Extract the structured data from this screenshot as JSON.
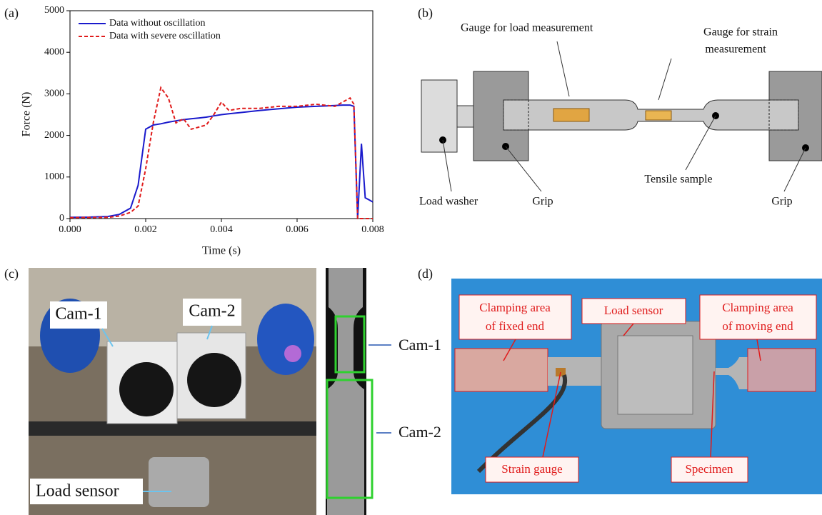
{
  "chart_data": {
    "type": "line",
    "panel_label": "(a)",
    "xlabel": "Time (s)",
    "ylabel": "Force (N)",
    "x": [
      0,
      0.0005,
      0.001,
      0.0013,
      0.0016,
      0.0018,
      0.002,
      0.0022,
      0.0024,
      0.0026,
      0.0028,
      0.003,
      0.0032,
      0.0034,
      0.0036,
      0.0038,
      0.004,
      0.0042,
      0.0045,
      0.005,
      0.0055,
      0.006,
      0.0065,
      0.007,
      0.0072,
      0.0074,
      0.0075,
      0.0076,
      0.0077,
      0.0078,
      0.0079,
      0.008
    ],
    "series": [
      {
        "name": "Data without oscillation",
        "color": "#1a1acc",
        "dash": false,
        "values": [
          30,
          35,
          50,
          100,
          250,
          800,
          2150,
          2250,
          2280,
          2320,
          2350,
          2380,
          2400,
          2420,
          2440,
          2470,
          2500,
          2520,
          2550,
          2600,
          2640,
          2680,
          2700,
          2720,
          2730,
          2730,
          2700,
          0,
          1800,
          500,
          450,
          400
        ]
      },
      {
        "name": "Data with severe oscillation",
        "color": "#e01b1b",
        "dash": true,
        "values": [
          20,
          25,
          30,
          60,
          150,
          300,
          1200,
          2300,
          3150,
          2900,
          2300,
          2400,
          2150,
          2200,
          2250,
          2500,
          2800,
          2600,
          2650,
          2650,
          2700,
          2700,
          2750,
          2700,
          2800,
          2900,
          2750,
          0,
          0,
          0,
          0,
          0
        ]
      }
    ],
    "xlim": [
      0,
      0.008
    ],
    "ylim": [
      0,
      5000
    ],
    "xticks": [
      {
        "value": 0,
        "label": "0.000"
      },
      0.002,
      0.004,
      0.006,
      0.008
    ],
    "yticks": [
      0,
      1000,
      2000,
      3000,
      4000,
      5000
    ],
    "legend": "upper left"
  },
  "diagram_b": {
    "panel_label": "(b)",
    "gauge_load": "Gauge for load measurement",
    "gauge_strain": [
      "Gauge for strain",
      "measurement"
    ],
    "load_washer": "Load washer",
    "grip_left": "Grip",
    "tensile_sample": "Tensile sample",
    "grip_right": "Grip"
  },
  "photo_c": {
    "panel_label": "(c)",
    "cam1": "Cam-1",
    "cam2": "Cam-2",
    "load_sensor": "Load sensor",
    "strip_cam1": "Cam-1",
    "strip_cam2": "Cam-2"
  },
  "photo_d": {
    "panel_label": "(d)",
    "fixed_end": [
      "Clamping area",
      "of fixed end"
    ],
    "load_sensor": "Load sensor",
    "moving_end": [
      "Clamping area",
      "of moving end"
    ],
    "strain_gauge": "Strain gauge",
    "specimen": "Specimen"
  }
}
